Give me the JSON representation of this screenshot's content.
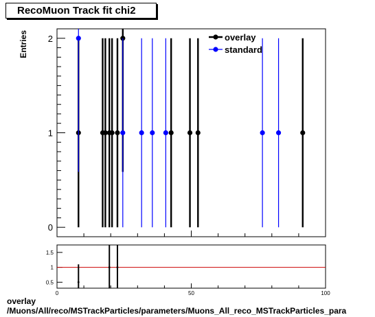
{
  "title": "RecoMuon Track fit chi2",
  "footer": {
    "line1": "overlay",
    "line2": "/Muons/All/reco/MSTrackParticles/parameters/Muons_All_reco_MSTrackParticles_para"
  },
  "colors": {
    "overlay": "#000000",
    "standard": "#0000ff",
    "ratio_line": "#cc0000"
  },
  "chart_data": [
    {
      "type": "scatter",
      "ylabel": "Entries",
      "xlim": [
        0,
        100
      ],
      "ylim": [
        -0.1,
        2.1
      ],
      "y_ticks": [
        "0",
        "1",
        "2"
      ],
      "legend": {
        "placement": "top-right",
        "entries": [
          "overlay",
          "standard"
        ]
      },
      "series": [
        {
          "name": "overlay",
          "points": [
            {
              "x": 8,
              "y": 1
            },
            {
              "x": 17,
              "y": 1
            },
            {
              "x": 18,
              "y": 1
            },
            {
              "x": 19.5,
              "y": 1
            },
            {
              "x": 20.5,
              "y": 1
            },
            {
              "x": 22.5,
              "y": 1
            },
            {
              "x": 24.5,
              "y": 2
            },
            {
              "x": 42.5,
              "y": 1
            },
            {
              "x": 49.5,
              "y": 1
            },
            {
              "x": 52.5,
              "y": 1
            },
            {
              "x": 91.5,
              "y": 1
            }
          ]
        },
        {
          "name": "standard",
          "points": [
            {
              "x": 8,
              "y": 2
            },
            {
              "x": 24.5,
              "y": 1
            },
            {
              "x": 31.5,
              "y": 1
            },
            {
              "x": 35.5,
              "y": 1
            },
            {
              "x": 40.5,
              "y": 1
            },
            {
              "x": 76.5,
              "y": 1
            },
            {
              "x": 82.5,
              "y": 1
            }
          ]
        }
      ]
    },
    {
      "type": "scatter",
      "xlim": [
        0,
        100
      ],
      "ylim": [
        0.3,
        1.75
      ],
      "x_ticks": [
        "0",
        "50",
        "100"
      ],
      "y_ticks": [
        "0.5",
        "1",
        "1.5"
      ],
      "reference_line": 1,
      "points": [
        {
          "x": 8,
          "y": 0.5,
          "err": 0.6
        },
        {
          "x": 19.5,
          "y": 1,
          "err": 0.9
        },
        {
          "x": 22.5,
          "y": 1,
          "err": 0.9
        }
      ]
    }
  ]
}
